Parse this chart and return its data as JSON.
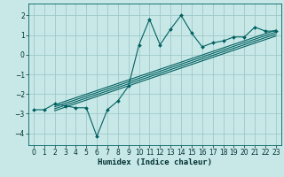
{
  "title": "",
  "xlabel": "Humidex (Indice chaleur)",
  "ylabel": "",
  "bg_color": "#c8e8e8",
  "grid_color": "#a0c8c8",
  "line_color": "#006060",
  "xlim": [
    -0.5,
    23.5
  ],
  "ylim": [
    -4.6,
    2.6
  ],
  "xticks": [
    0,
    1,
    2,
    3,
    4,
    5,
    6,
    7,
    8,
    9,
    10,
    11,
    12,
    13,
    14,
    15,
    16,
    17,
    18,
    19,
    20,
    21,
    22,
    23
  ],
  "yticks": [
    -4,
    -3,
    -2,
    -1,
    0,
    1,
    2
  ],
  "scatter_x": [
    0,
    1,
    2,
    3,
    4,
    5,
    6,
    7,
    8,
    9,
    10,
    11,
    12,
    13,
    14,
    15,
    16,
    17,
    18,
    19,
    20,
    21,
    22,
    23
  ],
  "scatter_y": [
    -2.8,
    -2.8,
    -2.5,
    -2.6,
    -2.7,
    -2.7,
    -4.15,
    -2.8,
    -2.35,
    -1.6,
    0.5,
    1.8,
    0.5,
    1.3,
    2.0,
    1.1,
    0.4,
    0.6,
    0.7,
    0.9,
    0.9,
    1.4,
    1.2,
    1.2
  ],
  "regression_lines": [
    {
      "x0": 2,
      "y0": -2.55,
      "x1": 23,
      "y1": 1.25
    },
    {
      "x0": 2,
      "y0": -2.65,
      "x1": 23,
      "y1": 1.15
    },
    {
      "x0": 2,
      "y0": -2.75,
      "x1": 23,
      "y1": 1.05
    },
    {
      "x0": 2,
      "y0": -2.85,
      "x1": 23,
      "y1": 0.95
    }
  ]
}
